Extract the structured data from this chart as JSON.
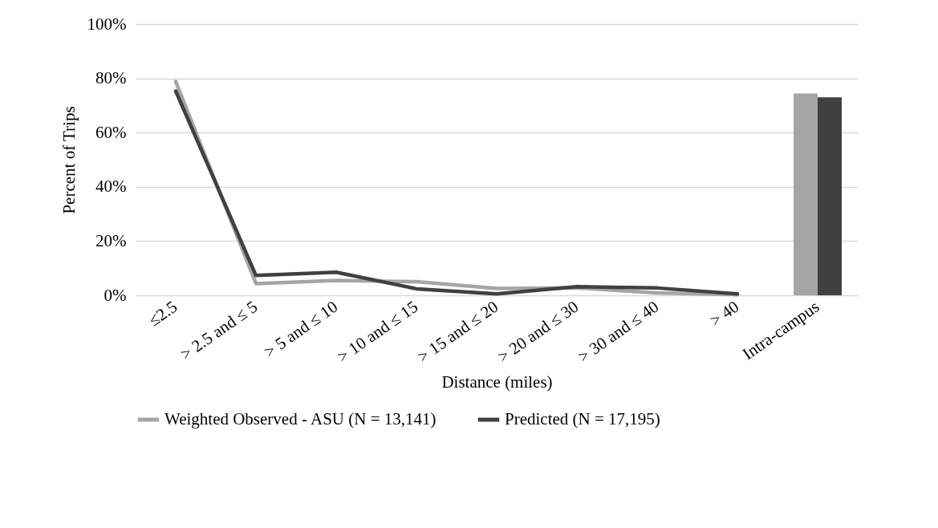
{
  "chart_data": {
    "type": "line",
    "xlabel": "Distance (miles)",
    "ylabel": "Percent of Trips",
    "categories": [
      "≤2.5",
      "> 2.5 and ≤ 5",
      "> 5 and ≤ 10",
      "> 10 and ≤ 15",
      "> 15 and ≤ 20",
      "> 20 and ≤ 30",
      "> 30 and ≤ 40",
      "> 40",
      "Intra-campus"
    ],
    "series": [
      {
        "name": "Weighted Observed - ASU (N = 13,141)",
        "color": "#a5a5a5",
        "values": [
          78.8,
          4.3,
          5.5,
          5.0,
          2.5,
          2.7,
          0.9,
          0.2,
          null
        ]
      },
      {
        "name": "Predicted (N = 17,195)",
        "color": "#404040",
        "values": [
          75.3,
          7.3,
          8.5,
          2.4,
          0.5,
          3.2,
          2.7,
          0.5,
          null
        ]
      },
      {
        "type": "bar",
        "color": "#a5a5a5",
        "values": [
          null,
          null,
          null,
          null,
          null,
          null,
          null,
          null,
          74.4
        ]
      },
      {
        "type": "bar",
        "color": "#404040",
        "values": [
          null,
          null,
          null,
          null,
          null,
          null,
          null,
          null,
          73.0
        ]
      }
    ],
    "ylim": [
      0,
      100
    ],
    "yticks": [
      {
        "value": 0,
        "label": "0%"
      },
      {
        "value": 20,
        "label": "20%"
      },
      {
        "value": 40,
        "label": "40%"
      },
      {
        "value": 60,
        "label": "60%"
      },
      {
        "value": 80,
        "label": "80%"
      },
      {
        "value": 100,
        "label": "100%"
      }
    ],
    "grid": "y",
    "legend": "bottom",
    "marker": "none",
    "line_style": "solid"
  }
}
